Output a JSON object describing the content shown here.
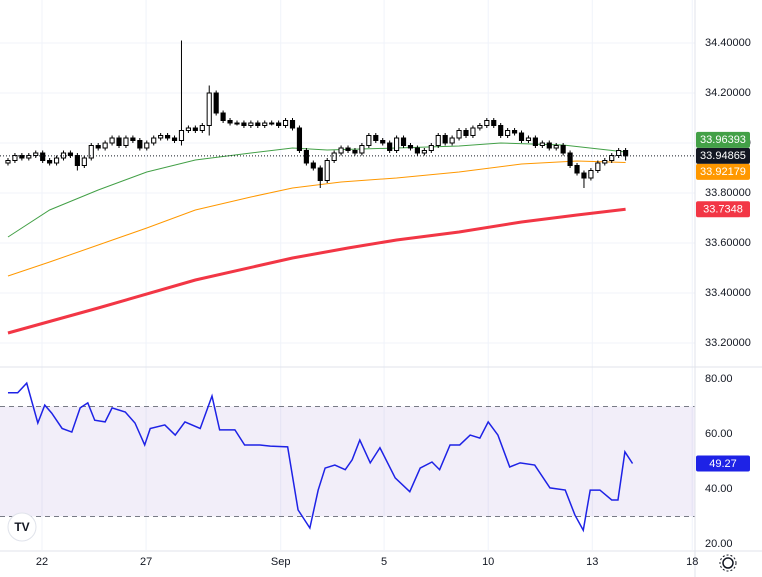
{
  "chart_data": [
    {
      "type": "candlestick",
      "xlim": [
        -1.15,
        99
      ],
      "xticks": [
        {
          "value": 4.9,
          "label": "22"
        },
        {
          "value": 19.9,
          "label": "27"
        },
        {
          "value": 39.3,
          "label": "Sep"
        },
        {
          "value": 54.2,
          "label": "5"
        },
        {
          "value": 69.2,
          "label": "10"
        },
        {
          "value": 84.2,
          "label": "13"
        },
        {
          "value": 98.6,
          "label": "18"
        }
      ],
      "ylim": [
        33.108,
        34.572
      ],
      "yticks": [
        {
          "value": 34.4,
          "label": "34.40000"
        },
        {
          "value": 34.2,
          "label": "34.20000"
        },
        {
          "value": 34.0,
          "label": "34.00000"
        },
        {
          "value": 33.8,
          "label": "33.80000"
        },
        {
          "value": 33.6,
          "label": "33.60000"
        },
        {
          "value": 33.4,
          "label": "33.40000"
        },
        {
          "value": 33.2,
          "label": "33.20000"
        }
      ],
      "grid": true,
      "up_color": "#ffffff",
      "down_color": "#000000",
      "last_price_line": true,
      "open": [
        33.92,
        33.93,
        33.95,
        33.94,
        33.95,
        33.96,
        33.93,
        33.92,
        33.94,
        33.96,
        33.95,
        33.91,
        33.94,
        33.99,
        33.98,
        34.0,
        34.02,
        33.99,
        34.02,
        34.01,
        33.98,
        34.0,
        34.02,
        34.03,
        34.02,
        34.01,
        34.05,
        34.06,
        34.05,
        34.07,
        34.2,
        34.12,
        34.09,
        34.08,
        34.08,
        34.07,
        34.08,
        34.07,
        34.08,
        34.08,
        34.07,
        34.09,
        34.06,
        33.97,
        33.92,
        33.9,
        33.85,
        33.93,
        33.96,
        33.98,
        33.97,
        33.96,
        33.99,
        34.03,
        34.01,
        34.0,
        33.97,
        34.02,
        33.99,
        33.98,
        33.96,
        33.97,
        33.99,
        34.03,
        34.0,
        34.02,
        34.05,
        34.03,
        34.06,
        34.07,
        34.09,
        34.07,
        34.03,
        34.05,
        34.04,
        34.01,
        34.02,
        33.99,
        34.0,
        33.98,
        33.99,
        33.96,
        33.91,
        33.88,
        33.86,
        33.89,
        33.92,
        33.93,
        33.95,
        33.97
      ],
      "high": [
        33.94,
        33.96,
        33.96,
        33.96,
        33.97,
        33.97,
        33.94,
        33.95,
        33.97,
        33.97,
        33.96,
        33.95,
        34.0,
        34.0,
        34.01,
        34.03,
        34.03,
        34.03,
        34.03,
        34.02,
        34.01,
        34.03,
        34.04,
        34.04,
        34.03,
        34.41,
        34.07,
        34.07,
        34.08,
        34.23,
        34.21,
        34.13,
        34.1,
        34.09,
        34.09,
        34.09,
        34.09,
        34.09,
        34.09,
        34.09,
        34.1,
        34.1,
        34.07,
        33.98,
        33.93,
        33.91,
        33.94,
        33.97,
        33.99,
        33.99,
        33.98,
        34.0,
        34.04,
        34.04,
        34.02,
        34.01,
        34.03,
        34.03,
        34.0,
        33.99,
        33.98,
        34.0,
        34.04,
        34.04,
        34.03,
        34.06,
        34.06,
        34.07,
        34.08,
        34.1,
        34.1,
        34.08,
        34.06,
        34.06,
        34.05,
        34.03,
        34.03,
        34.01,
        34.01,
        34.0,
        34.0,
        33.97,
        33.92,
        33.89,
        33.9,
        33.93,
        33.94,
        33.96,
        33.98,
        33.98
      ],
      "low": [
        33.91,
        33.92,
        33.93,
        33.93,
        33.94,
        33.92,
        33.91,
        33.91,
        33.93,
        33.94,
        33.89,
        33.9,
        33.93,
        33.97,
        33.97,
        33.99,
        33.98,
        33.98,
        34.0,
        33.97,
        33.97,
        33.99,
        34.01,
        34.01,
        34.0,
        33.99,
        34.04,
        34.04,
        34.04,
        34.03,
        34.11,
        34.08,
        34.07,
        34.07,
        34.06,
        34.06,
        34.06,
        34.06,
        34.07,
        34.06,
        34.06,
        34.05,
        33.96,
        33.91,
        33.89,
        33.82,
        33.84,
        33.92,
        33.95,
        33.96,
        33.95,
        33.95,
        33.98,
        34.0,
        33.99,
        33.96,
        33.96,
        33.98,
        33.97,
        33.95,
        33.95,
        33.96,
        33.98,
        33.99,
        33.99,
        34.01,
        34.02,
        34.02,
        34.05,
        34.06,
        34.06,
        34.02,
        34.02,
        34.03,
        34.0,
        34.0,
        33.98,
        33.98,
        33.97,
        33.97,
        33.95,
        33.9,
        33.87,
        33.82,
        33.85,
        33.88,
        33.91,
        33.92,
        33.94,
        33.93
      ],
      "close": [
        33.93,
        33.95,
        33.94,
        33.95,
        33.96,
        33.93,
        33.92,
        33.94,
        33.96,
        33.95,
        33.91,
        33.94,
        33.99,
        33.98,
        34.0,
        34.02,
        33.99,
        34.02,
        34.01,
        33.98,
        34.0,
        34.02,
        34.03,
        34.02,
        34.01,
        34.05,
        34.06,
        34.05,
        34.07,
        34.2,
        34.12,
        34.09,
        34.08,
        34.08,
        34.07,
        34.08,
        34.07,
        34.08,
        34.08,
        34.07,
        34.09,
        34.06,
        33.97,
        33.92,
        33.9,
        33.85,
        33.93,
        33.96,
        33.98,
        33.97,
        33.96,
        33.99,
        34.03,
        34.01,
        34.0,
        33.97,
        34.02,
        33.99,
        33.98,
        33.96,
        33.97,
        33.99,
        34.03,
        34.0,
        34.02,
        34.05,
        34.03,
        34.06,
        34.07,
        34.09,
        34.07,
        34.03,
        34.05,
        34.04,
        34.01,
        34.02,
        33.99,
        34.0,
        33.98,
        33.99,
        33.96,
        33.91,
        33.88,
        33.86,
        33.89,
        33.92,
        33.93,
        33.95,
        33.97,
        33.94865
      ],
      "close_color": "#131722",
      "series": [
        {
          "color": "#43a047",
          "width": 1,
          "x": [
            0,
            6,
            13,
            20,
            27,
            35,
            41,
            46,
            56,
            65,
            71,
            80,
            89
          ],
          "values": [
            33.624,
            33.732,
            33.812,
            33.884,
            33.932,
            33.96,
            33.98,
            33.972,
            33.98,
            33.988,
            34.0,
            33.992,
            33.96393
          ]
        },
        {
          "color": "#ff9800",
          "width": 1,
          "x": [
            0,
            6,
            13,
            20,
            27,
            35,
            41,
            48,
            56,
            65,
            74,
            82,
            89
          ],
          "values": [
            33.468,
            33.524,
            33.592,
            33.66,
            33.732,
            33.784,
            33.82,
            33.844,
            33.86,
            33.884,
            33.916,
            33.928,
            33.92179
          ]
        },
        {
          "color": "#f23645",
          "width": 3,
          "x": [
            0,
            13,
            27,
            41,
            49,
            56,
            65,
            74,
            82,
            89
          ],
          "values": [
            33.24,
            33.34,
            33.452,
            33.54,
            33.58,
            33.612,
            33.644,
            33.684,
            33.712,
            33.7348
          ]
        }
      ]
    },
    {
      "type": "line",
      "xlim": [
        -1.15,
        99
      ],
      "ylim": [
        17.8,
        84
      ],
      "yticks": [
        {
          "value": 80,
          "label": "80.00"
        },
        {
          "value": 60,
          "label": "60.00"
        },
        {
          "value": 40,
          "label": "40.00"
        },
        {
          "value": 20,
          "label": "20.00"
        }
      ],
      "levels": [
        70,
        30
      ],
      "band_color": "#7e57c2",
      "series": [
        {
          "color": "#1e22e6",
          "width": 1.5,
          "x": [
            0,
            1.4,
            2.7,
            4.3,
            5.3,
            6.3,
            7.8,
            9.2,
            10.4,
            11.5,
            12.5,
            14,
            15,
            16.9,
            18.3,
            19.7,
            20.5,
            22.6,
            24.1,
            25.5,
            27.7,
            29.4,
            30.5,
            32.7,
            34.1,
            36.3,
            37.8,
            40.3,
            41.8,
            43.5,
            44.7,
            45.7,
            47.1,
            48.6,
            49.6,
            50.7,
            52.2,
            53.6,
            55.8,
            57.9,
            59.4,
            61.1,
            62.2,
            63.7,
            65.1,
            66.6,
            68,
            69.2,
            70.6,
            72.3,
            73.8,
            75.9,
            78.1,
            80.3,
            81.7,
            82.9,
            83.9,
            85.3,
            87,
            87.9,
            88.9,
            90
          ],
          "values": [
            75,
            75,
            78.5,
            64,
            70.5,
            67.6,
            62,
            60.7,
            69.5,
            71.3,
            65,
            64.4,
            69.5,
            68,
            64,
            56,
            62,
            63.3,
            59.6,
            64.4,
            62,
            73.8,
            61.5,
            61.5,
            56,
            56,
            55.6,
            55.3,
            32.4,
            25.8,
            39.6,
            47.6,
            48.7,
            47,
            50.6,
            57.8,
            49.5,
            55,
            44,
            39,
            47.6,
            49.8,
            47,
            56,
            56,
            59.6,
            58.5,
            64.4,
            59.6,
            48,
            49.5,
            48.7,
            40.4,
            39.6,
            30.5,
            25,
            39.6,
            39.6,
            36,
            36,
            53.5,
            49.27
          ]
        }
      ]
    }
  ]
}
